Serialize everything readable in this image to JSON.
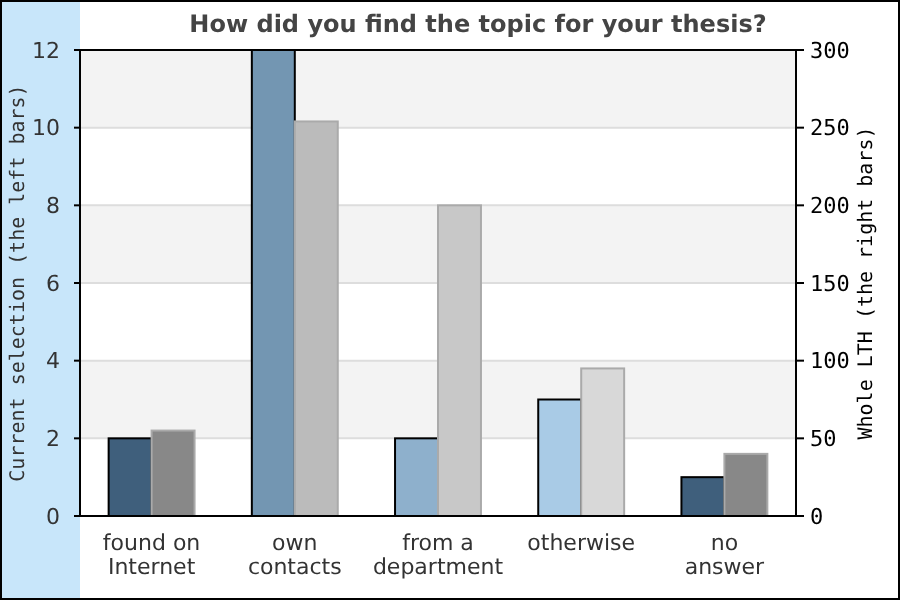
{
  "chart_data": {
    "type": "bar",
    "title": "How did you find the topic for your thesis?",
    "categories": [
      "found on\nInternet",
      "own\ncontacts",
      "from a\ndepartment",
      "otherwise",
      "no\nanswer"
    ],
    "series": [
      {
        "colors": [
          "#3f5f7c",
          "#7396b2",
          "#8eb0cc",
          "#a9cbe6",
          "#3f5f7c"
        ],
        "values": [
          2,
          12,
          2,
          3,
          1
        ]
      },
      {
        "axis": "y2",
        "colors": [
          "#888888",
          "#bbbbbb",
          "#c8c8c8",
          "#d8d8d8",
          "#888888"
        ],
        "values": [
          55,
          254,
          200,
          95,
          40
        ]
      }
    ],
    "ylabel": "Current selection (the left bars)",
    "y2label": "Whole LTH (the right bars)",
    "ylim": [
      0,
      12
    ],
    "yticks": [
      0,
      2,
      4,
      6,
      8,
      10,
      12
    ],
    "y2lim": [
      0,
      300
    ],
    "y2ticks": [
      0,
      50,
      100,
      150,
      200,
      250,
      300
    ],
    "grid": "y"
  }
}
